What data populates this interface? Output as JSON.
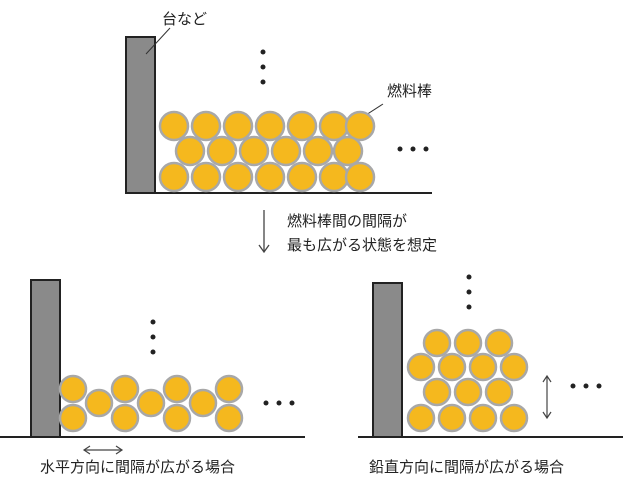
{
  "labels": {
    "support": "台など",
    "fuel_rod": "燃料棒",
    "assumption_line1": "燃料棒間の間隔が",
    "assumption_line2": "最も広がる状態を想定",
    "horizontal_case": "水平方向に間隔が広がる場合",
    "vertical_case": "鉛直方向に間隔が広がる場合"
  },
  "colors": {
    "rod_fill": "#f5b81e",
    "rod_edge": "#a8a8a8",
    "support_fill": "#8a8a8a",
    "support_edge": "#222222",
    "floor_line": "#222222",
    "arrow": "#444444"
  },
  "scenarios": [
    {
      "id": "reference",
      "rod_layers": 3,
      "rods_per_layer": 7,
      "gap": "none"
    },
    {
      "id": "horizontal",
      "rod_layers": 2,
      "rods_per_layer": 4,
      "gap": "horizontal"
    },
    {
      "id": "vertical",
      "rod_layers": 4,
      "rods_per_layer": 4,
      "gap": "vertical"
    }
  ]
}
